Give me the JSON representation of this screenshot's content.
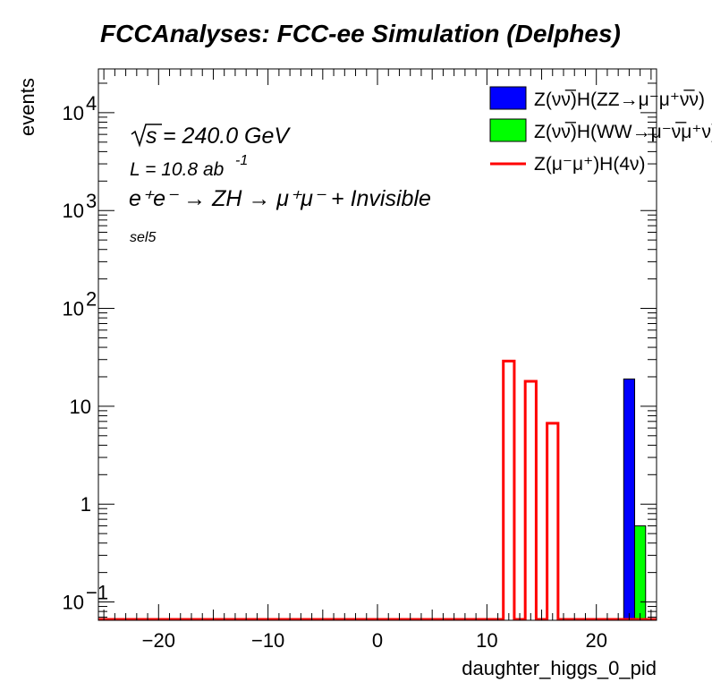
{
  "chart_data": {
    "type": "bar",
    "title": "FCCAnalyses: FCC-ee Simulation (Delphes)",
    "xlabel": "daughter_higgs_0_pid",
    "ylabel": "events",
    "xlim": [
      -25.5,
      25.5
    ],
    "ylim": [
      0.065,
      28000
    ],
    "yscale": "log",
    "x_ticks": [
      -20,
      -10,
      0,
      10,
      20
    ],
    "x_tick_labels": [
      "−20",
      "−10",
      "0",
      "10",
      "20"
    ],
    "y_ticks": [
      0.1,
      1,
      10,
      100,
      1000,
      10000
    ],
    "y_tick_labels": [
      {
        "base": "10",
        "exp": "−1"
      },
      {
        "base": "1",
        "exp": ""
      },
      {
        "base": "10",
        "exp": ""
      },
      {
        "base": "10",
        "exp": "2"
      },
      {
        "base": "10",
        "exp": "3"
      },
      {
        "base": "10",
        "exp": "4"
      }
    ],
    "stacked": [
      {
        "name": "Z(νν̅)H(ZZ→μ⁻μ⁺ν̅ν)",
        "color": "#0000ff",
        "bins": [
          {
            "x0": 22.5,
            "x1": 23.5,
            "value": 19
          }
        ]
      },
      {
        "name": "Z(νν̅)H(WW→μ⁻ν̅μ⁺ν)",
        "color": "#00ff00",
        "bins": [
          {
            "x0": 23.5,
            "x1": 24.5,
            "value": 0.6
          }
        ]
      }
    ],
    "line": {
      "name": "Z(μ⁻μ⁺)H(4ν)",
      "color": "#ff0000",
      "bins": [
        {
          "x0": 11.5,
          "x1": 12.5,
          "value": 29
        },
        {
          "x0": 13.5,
          "x1": 14.5,
          "value": 18
        },
        {
          "x0": 15.5,
          "x1": 16.5,
          "value": 6.7
        }
      ]
    },
    "legend_position": "top-right",
    "annotations": {
      "sqrts": "= 240.0 GeV",
      "sqrts_symbol": "s",
      "lumi": "L = 10.8 ab",
      "lumi_exp": "-1",
      "process": "e⁺e⁻ → ZH → μ⁺μ⁻ + Invisible",
      "selection": "sel5"
    }
  }
}
